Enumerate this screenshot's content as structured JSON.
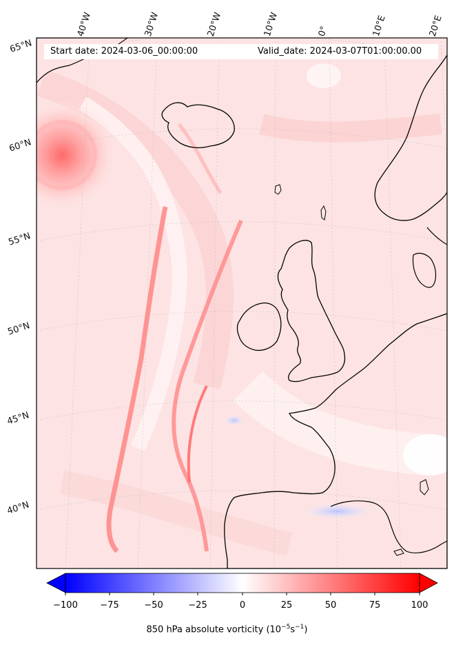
{
  "map": {
    "start_date_text": "Start date: 2024-03-06_00:00:00",
    "valid_date_text": "Valid_date: 2024-03-07T01:00:00.00",
    "longitude_labels": [
      "40°W",
      "30°W",
      "20°W",
      "10°W",
      "0°",
      "10°E",
      "20°E"
    ],
    "latitude_labels": [
      "65°N",
      "60°N",
      "55°N",
      "50°N",
      "45°N",
      "40°N"
    ],
    "colors": {
      "coastline": "#000000",
      "background": "#fde6e6",
      "gridline": "#b0b0b0"
    }
  },
  "colorbar": {
    "ticks": [
      "−100",
      "−75",
      "−50",
      "−25",
      "0",
      "25",
      "50",
      "75",
      "100"
    ],
    "min": -100,
    "max": 100,
    "colormap": "bwr",
    "label_main": "850 hPa absolute vorticity (10",
    "label_sup1": "−5",
    "label_mid": "s",
    "label_sup2": "−1",
    "label_end": ")",
    "extend": "both"
  }
}
